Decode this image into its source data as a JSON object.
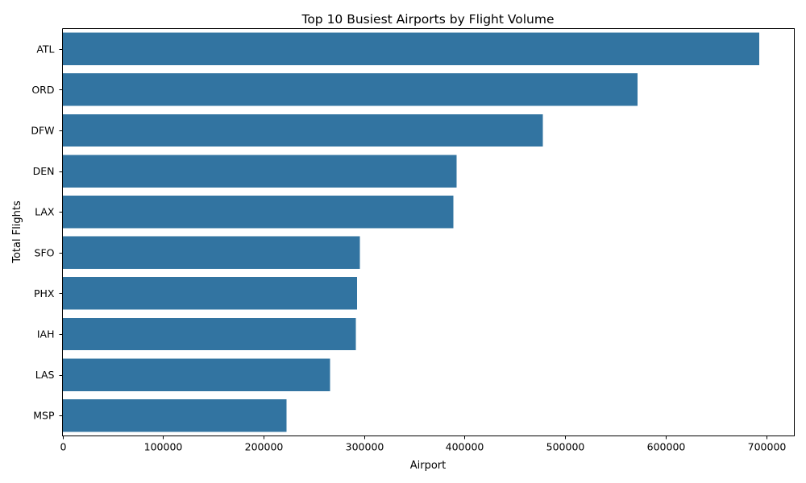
{
  "chart_data": {
    "type": "bar",
    "orientation": "horizontal",
    "title": "Top 10 Busiest Airports by Flight Volume",
    "xlabel": "Airport",
    "ylabel": "Total Flights",
    "categories": [
      "ATL",
      "ORD",
      "DFW",
      "DEN",
      "LAX",
      "SFO",
      "PHX",
      "IAH",
      "LAS",
      "MSP"
    ],
    "values": [
      693000,
      572000,
      478000,
      392000,
      389000,
      296000,
      293000,
      292000,
      266000,
      223000
    ],
    "xlim": [
      0,
      728000
    ],
    "xticks": [
      0,
      100000,
      200000,
      300000,
      400000,
      500000,
      600000,
      700000
    ],
    "xtick_labels": [
      "0",
      "100000",
      "200000",
      "300000",
      "400000",
      "500000",
      "600000",
      "700000"
    ],
    "bar_color": "#3274a1",
    "grid": false,
    "legend": "none"
  }
}
